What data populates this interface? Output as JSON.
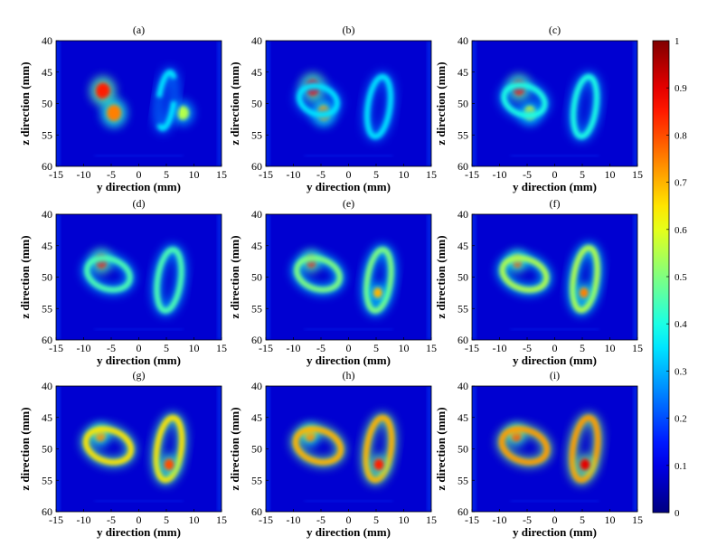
{
  "chart_data": {
    "type": "heatmap",
    "layout": "3x3 grid of panels with shared colorbar on right",
    "panels": [
      {
        "title": "(a)",
        "blobs": [
          {
            "kind": "spot",
            "y": -6.5,
            "z": 48,
            "r": 1.3,
            "v": 0.85
          },
          {
            "kind": "spot",
            "y": -4.5,
            "z": 51.5,
            "r": 1.3,
            "v": 0.75
          },
          {
            "kind": "spot",
            "y": 8,
            "z": 51.5,
            "r": 1.1,
            "v": 0.55
          },
          {
            "kind": "arc",
            "y": 5,
            "z": 49.5,
            "ry": 1.4,
            "rz": 4.5,
            "v": 0.35
          }
        ]
      },
      {
        "title": "(b)",
        "blobs": [
          {
            "kind": "spot",
            "y": -6.5,
            "z": 47.5,
            "r": 1.3,
            "v": 0.85
          },
          {
            "kind": "spot",
            "y": -4.5,
            "z": 51.5,
            "r": 1.2,
            "v": 0.7
          },
          {
            "kind": "ring",
            "y": -5.5,
            "z": 49.5,
            "ry": 3.5,
            "rz": 2.2,
            "v": 0.35
          },
          {
            "kind": "ring",
            "y": 5.5,
            "z": 50.5,
            "ry": 2.0,
            "rz": 4.8,
            "v": 0.35
          }
        ]
      },
      {
        "title": "(c)",
        "blobs": [
          {
            "kind": "spot",
            "y": -6.5,
            "z": 47.5,
            "r": 1.2,
            "v": 0.85
          },
          {
            "kind": "spot",
            "y": -4.5,
            "z": 51.5,
            "r": 1.1,
            "v": 0.6
          },
          {
            "kind": "ring",
            "y": -5.5,
            "z": 49.5,
            "ry": 3.8,
            "rz": 2.3,
            "v": 0.4
          },
          {
            "kind": "ring",
            "y": 5.5,
            "z": 50.5,
            "ry": 2.0,
            "rz": 4.8,
            "v": 0.4
          }
        ]
      },
      {
        "title": "(d)",
        "blobs": [
          {
            "kind": "spot",
            "y": -6.8,
            "z": 47.5,
            "r": 1.1,
            "v": 0.85
          },
          {
            "kind": "ring",
            "y": -5.5,
            "z": 49.5,
            "ry": 4.0,
            "rz": 2.4,
            "v": 0.45
          },
          {
            "kind": "ring",
            "y": 5.5,
            "z": 50.5,
            "ry": 2.1,
            "rz": 4.9,
            "v": 0.45
          }
        ]
      },
      {
        "title": "(e)",
        "blobs": [
          {
            "kind": "spot",
            "y": -6.8,
            "z": 47.5,
            "r": 1.0,
            "v": 0.85
          },
          {
            "kind": "ring",
            "y": -5.5,
            "z": 49.5,
            "ry": 4.0,
            "rz": 2.4,
            "v": 0.5
          },
          {
            "kind": "ring",
            "y": 5.5,
            "z": 50.5,
            "ry": 2.1,
            "rz": 4.9,
            "v": 0.5
          },
          {
            "kind": "spot",
            "y": 5.3,
            "z": 52.5,
            "r": 0.8,
            "v": 0.7
          }
        ]
      },
      {
        "title": "(f)",
        "blobs": [
          {
            "kind": "spot",
            "y": -6.8,
            "z": 47.5,
            "r": 1.0,
            "v": 0.8
          },
          {
            "kind": "ring",
            "y": -5.5,
            "z": 49.5,
            "ry": 4.1,
            "rz": 2.4,
            "v": 0.55
          },
          {
            "kind": "ring",
            "y": 5.5,
            "z": 50.3,
            "ry": 2.1,
            "rz": 5.0,
            "v": 0.55
          },
          {
            "kind": "spot",
            "y": 5.3,
            "z": 52.5,
            "r": 0.8,
            "v": 0.75
          }
        ]
      },
      {
        "title": "(g)",
        "blobs": [
          {
            "kind": "spot",
            "y": -7,
            "z": 47.8,
            "r": 1.0,
            "v": 0.75
          },
          {
            "kind": "ring",
            "y": -5.5,
            "z": 49.5,
            "ry": 4.2,
            "rz": 2.5,
            "v": 0.65
          },
          {
            "kind": "ring",
            "y": 5.5,
            "z": 50.0,
            "ry": 2.2,
            "rz": 5.0,
            "v": 0.65
          },
          {
            "kind": "spot",
            "y": 5.5,
            "z": 52.5,
            "r": 0.9,
            "v": 0.8
          }
        ]
      },
      {
        "title": "(h)",
        "blobs": [
          {
            "kind": "spot",
            "y": -7,
            "z": 47.8,
            "r": 1.0,
            "v": 0.75
          },
          {
            "kind": "ring",
            "y": -5.5,
            "z": 49.5,
            "ry": 4.2,
            "rz": 2.5,
            "v": 0.7
          },
          {
            "kind": "ring",
            "y": 5.5,
            "z": 50.0,
            "ry": 2.2,
            "rz": 5.0,
            "v": 0.7
          },
          {
            "kind": "spot",
            "y": 5.5,
            "z": 52.5,
            "r": 0.9,
            "v": 0.85
          }
        ]
      },
      {
        "title": "(i)",
        "blobs": [
          {
            "kind": "spot",
            "y": -7,
            "z": 47.8,
            "r": 1.0,
            "v": 0.8
          },
          {
            "kind": "ring",
            "y": -5.5,
            "z": 49.5,
            "ry": 4.2,
            "rz": 2.5,
            "v": 0.72
          },
          {
            "kind": "ring",
            "y": 5.5,
            "z": 50.0,
            "ry": 2.2,
            "rz": 5.0,
            "v": 0.72
          },
          {
            "kind": "spot",
            "y": 5.5,
            "z": 52.5,
            "r": 0.9,
            "v": 0.9
          }
        ]
      }
    ],
    "xlabel": "y direction (mm)",
    "ylabel": "z direction (mm)",
    "xlim": [
      -15,
      15
    ],
    "ylim": [
      40,
      60
    ],
    "xticks": [
      "-15",
      "-10",
      "-5",
      "0",
      "5",
      "10",
      "15"
    ],
    "yticks": [
      "40",
      "45",
      "50",
      "55",
      "60"
    ],
    "colorbar": {
      "colormap": "jet",
      "range": [
        0,
        1
      ],
      "ticks": [
        "0",
        "0.1",
        "0.2",
        "0.3",
        "0.4",
        "0.5",
        "0.6",
        "0.7",
        "0.8",
        "0.9",
        "1"
      ]
    },
    "background_value": 0.08
  }
}
